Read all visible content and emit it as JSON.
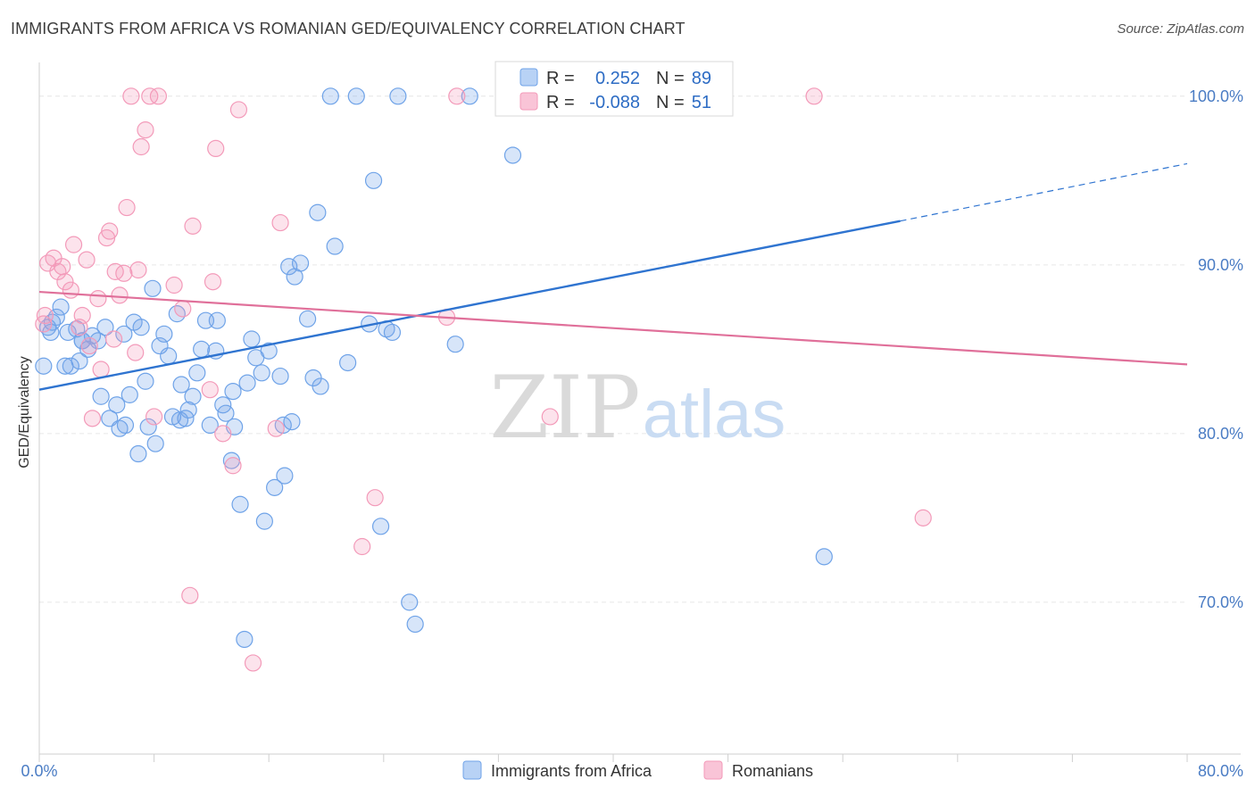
{
  "header": {
    "title": "IMMIGRANTS FROM AFRICA VS ROMANIAN GED/EQUIVALENCY CORRELATION CHART",
    "source": "Source: ZipAtlas.com"
  },
  "watermark": {
    "zip": "ZIP",
    "atlas": "atlas"
  },
  "chart_data": {
    "type": "scatter",
    "title": "IMMIGRANTS FROM AFRICA VS ROMANIAN GED/EQUIVALENCY CORRELATION CHART",
    "ylabel": "GED/Equivalency",
    "xlabel": "",
    "xlim": [
      0,
      80
    ],
    "ylim": [
      61,
      102
    ],
    "x_tick_labels": [
      "0.0%",
      "80.0%"
    ],
    "y_ticks": [
      70,
      80,
      90,
      100
    ],
    "y_tick_labels": [
      "70.0%",
      "80.0%",
      "90.0%",
      "100.0%"
    ],
    "grid": true,
    "legend_placement": "top-center",
    "colors": {
      "africa": "#6fa3e8",
      "romanians": "#f39ab9",
      "africa_line": "#2f74d0",
      "romanians_line": "#e0709a"
    },
    "stats": [
      {
        "r_label": "R =",
        "r": "0.252",
        "n_label": "N =",
        "n": "89"
      },
      {
        "r_label": "R =",
        "r": "-0.088",
        "n_label": "N =",
        "n": "51"
      }
    ],
    "series": [
      {
        "name": "Immigrants from Africa",
        "trend": {
          "x": [
            0,
            60,
            80
          ],
          "y": [
            82.6,
            92.6,
            96.0
          ],
          "solid_until": 60
        },
        "points": [
          [
            0.3,
            84.0
          ],
          [
            0.6,
            86.3
          ],
          [
            0.9,
            86.6
          ],
          [
            1.2,
            86.9
          ],
          [
            1.5,
            87.5
          ],
          [
            1.8,
            84.0
          ],
          [
            2.0,
            86.0
          ],
          [
            2.2,
            84.0
          ],
          [
            2.6,
            86.2
          ],
          [
            2.8,
            84.3
          ],
          [
            3.0,
            85.5
          ],
          [
            3.4,
            85.0
          ],
          [
            3.7,
            85.8
          ],
          [
            4.1,
            85.5
          ],
          [
            4.3,
            82.2
          ],
          [
            4.6,
            86.3
          ],
          [
            4.9,
            80.9
          ],
          [
            5.4,
            81.7
          ],
          [
            5.6,
            80.3
          ],
          [
            5.9,
            85.9
          ],
          [
            6.3,
            82.3
          ],
          [
            6.6,
            86.6
          ],
          [
            6.9,
            78.8
          ],
          [
            7.1,
            86.3
          ],
          [
            7.4,
            83.1
          ],
          [
            7.6,
            80.4
          ],
          [
            7.9,
            88.6
          ],
          [
            8.1,
            79.4
          ],
          [
            8.4,
            85.2
          ],
          [
            8.7,
            85.9
          ],
          [
            9.0,
            84.6
          ],
          [
            9.3,
            81.0
          ],
          [
            9.6,
            87.1
          ],
          [
            9.9,
            82.9
          ],
          [
            10.2,
            80.9
          ],
          [
            10.4,
            81.4
          ],
          [
            10.7,
            82.2
          ],
          [
            11.0,
            83.6
          ],
          [
            11.3,
            85.0
          ],
          [
            11.6,
            86.7
          ],
          [
            11.9,
            80.5
          ],
          [
            12.3,
            84.9
          ],
          [
            12.4,
            86.7
          ],
          [
            12.8,
            81.7
          ],
          [
            13.0,
            81.2
          ],
          [
            13.4,
            78.4
          ],
          [
            13.6,
            80.4
          ],
          [
            14.0,
            75.8
          ],
          [
            14.3,
            67.8
          ],
          [
            14.5,
            83.0
          ],
          [
            14.8,
            85.6
          ],
          [
            15.1,
            84.5
          ],
          [
            15.5,
            83.6
          ],
          [
            15.7,
            74.8
          ],
          [
            16.0,
            84.9
          ],
          [
            16.4,
            76.8
          ],
          [
            16.8,
            83.4
          ],
          [
            17.1,
            77.5
          ],
          [
            17.4,
            89.9
          ],
          [
            17.6,
            80.7
          ],
          [
            17.8,
            89.3
          ],
          [
            18.2,
            90.1
          ],
          [
            18.7,
            86.8
          ],
          [
            19.1,
            83.3
          ],
          [
            19.6,
            82.8
          ],
          [
            19.4,
            93.1
          ],
          [
            20.3,
            100.0
          ],
          [
            20.6,
            91.1
          ],
          [
            21.5,
            84.2
          ],
          [
            22.1,
            100.0
          ],
          [
            23.0,
            86.5
          ],
          [
            23.3,
            95.0
          ],
          [
            23.8,
            74.5
          ],
          [
            24.2,
            86.2
          ],
          [
            24.6,
            86.0
          ],
          [
            25.0,
            100.0
          ],
          [
            25.8,
            70.0
          ],
          [
            26.2,
            68.7
          ],
          [
            29.0,
            85.3
          ],
          [
            30.0,
            100.0
          ],
          [
            33.0,
            96.5
          ],
          [
            32.5,
            100.0
          ],
          [
            54.7,
            72.7
          ],
          [
            17.0,
            80.5
          ],
          [
            13.5,
            82.5
          ],
          [
            9.8,
            80.8
          ],
          [
            6.0,
            80.5
          ],
          [
            3.0,
            85.5
          ],
          [
            0.8,
            86.0
          ]
        ]
      },
      {
        "name": "Romanians",
        "trend": {
          "x": [
            0,
            80
          ],
          "y": [
            88.4,
            84.1
          ]
        },
        "points": [
          [
            0.3,
            86.5
          ],
          [
            0.4,
            87.0
          ],
          [
            0.6,
            90.1
          ],
          [
            1.0,
            90.4
          ],
          [
            1.3,
            89.6
          ],
          [
            1.6,
            89.9
          ],
          [
            1.8,
            89.0
          ],
          [
            2.2,
            88.5
          ],
          [
            2.4,
            91.2
          ],
          [
            2.8,
            86.3
          ],
          [
            3.0,
            87.0
          ],
          [
            3.3,
            90.3
          ],
          [
            3.5,
            85.2
          ],
          [
            3.7,
            80.9
          ],
          [
            4.1,
            88.0
          ],
          [
            4.3,
            83.8
          ],
          [
            4.7,
            91.6
          ],
          [
            4.9,
            92.0
          ],
          [
            5.2,
            85.6
          ],
          [
            5.3,
            89.6
          ],
          [
            5.6,
            88.2
          ],
          [
            5.9,
            89.5
          ],
          [
            6.1,
            93.4
          ],
          [
            6.4,
            100.0
          ],
          [
            6.7,
            84.8
          ],
          [
            6.9,
            89.7
          ],
          [
            7.1,
            97.0
          ],
          [
            7.4,
            98.0
          ],
          [
            7.7,
            100.0
          ],
          [
            8.0,
            81.0
          ],
          [
            8.3,
            100.0
          ],
          [
            9.4,
            88.8
          ],
          [
            10.0,
            87.4
          ],
          [
            10.5,
            70.4
          ],
          [
            10.7,
            92.3
          ],
          [
            11.9,
            82.6
          ],
          [
            12.1,
            89.0
          ],
          [
            12.3,
            96.9
          ],
          [
            12.8,
            80.0
          ],
          [
            13.5,
            78.1
          ],
          [
            13.9,
            99.2
          ],
          [
            14.9,
            66.4
          ],
          [
            16.5,
            80.3
          ],
          [
            16.8,
            92.5
          ],
          [
            22.5,
            73.3
          ],
          [
            23.4,
            76.2
          ],
          [
            29.1,
            100.0
          ],
          [
            28.4,
            86.9
          ],
          [
            35.6,
            81.0
          ],
          [
            54.0,
            100.0
          ],
          [
            61.6,
            75.0
          ]
        ]
      }
    ]
  }
}
